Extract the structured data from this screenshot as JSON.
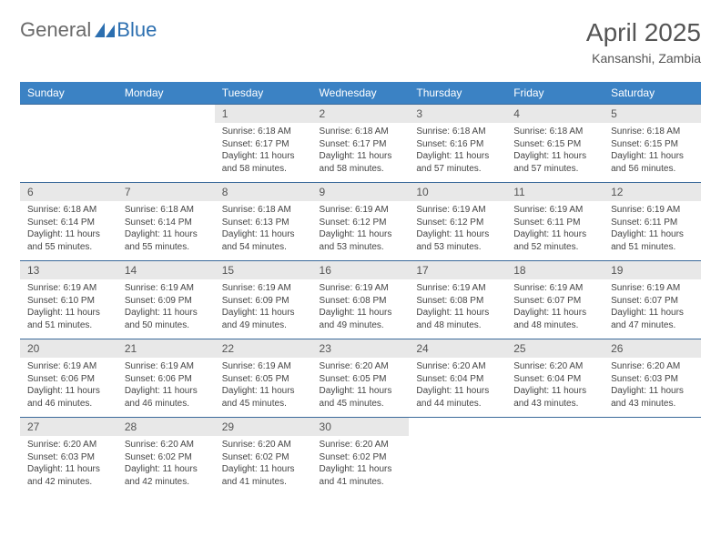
{
  "brand": {
    "part1": "General",
    "part2": "Blue"
  },
  "colors": {
    "header_bg": "#3b82c4",
    "header_text": "#ffffff",
    "row_border": "#3b6a9a",
    "daynum_bg": "#e8e8e8",
    "text": "#444444",
    "title": "#555555",
    "logo_gray": "#6a6a6a",
    "logo_accent": "#2c6fb0"
  },
  "title": "April 2025",
  "location": "Kansanshi, Zambia",
  "weekdays": [
    "Sunday",
    "Monday",
    "Tuesday",
    "Wednesday",
    "Thursday",
    "Friday",
    "Saturday"
  ],
  "weeks": [
    [
      {
        "n": "",
        "sr": "",
        "ss": "",
        "dl": ""
      },
      {
        "n": "",
        "sr": "",
        "ss": "",
        "dl": ""
      },
      {
        "n": "1",
        "sr": "Sunrise: 6:18 AM",
        "ss": "Sunset: 6:17 PM",
        "dl": "Daylight: 11 hours and 58 minutes."
      },
      {
        "n": "2",
        "sr": "Sunrise: 6:18 AM",
        "ss": "Sunset: 6:17 PM",
        "dl": "Daylight: 11 hours and 58 minutes."
      },
      {
        "n": "3",
        "sr": "Sunrise: 6:18 AM",
        "ss": "Sunset: 6:16 PM",
        "dl": "Daylight: 11 hours and 57 minutes."
      },
      {
        "n": "4",
        "sr": "Sunrise: 6:18 AM",
        "ss": "Sunset: 6:15 PM",
        "dl": "Daylight: 11 hours and 57 minutes."
      },
      {
        "n": "5",
        "sr": "Sunrise: 6:18 AM",
        "ss": "Sunset: 6:15 PM",
        "dl": "Daylight: 11 hours and 56 minutes."
      }
    ],
    [
      {
        "n": "6",
        "sr": "Sunrise: 6:18 AM",
        "ss": "Sunset: 6:14 PM",
        "dl": "Daylight: 11 hours and 55 minutes."
      },
      {
        "n": "7",
        "sr": "Sunrise: 6:18 AM",
        "ss": "Sunset: 6:14 PM",
        "dl": "Daylight: 11 hours and 55 minutes."
      },
      {
        "n": "8",
        "sr": "Sunrise: 6:18 AM",
        "ss": "Sunset: 6:13 PM",
        "dl": "Daylight: 11 hours and 54 minutes."
      },
      {
        "n": "9",
        "sr": "Sunrise: 6:19 AM",
        "ss": "Sunset: 6:12 PM",
        "dl": "Daylight: 11 hours and 53 minutes."
      },
      {
        "n": "10",
        "sr": "Sunrise: 6:19 AM",
        "ss": "Sunset: 6:12 PM",
        "dl": "Daylight: 11 hours and 53 minutes."
      },
      {
        "n": "11",
        "sr": "Sunrise: 6:19 AM",
        "ss": "Sunset: 6:11 PM",
        "dl": "Daylight: 11 hours and 52 minutes."
      },
      {
        "n": "12",
        "sr": "Sunrise: 6:19 AM",
        "ss": "Sunset: 6:11 PM",
        "dl": "Daylight: 11 hours and 51 minutes."
      }
    ],
    [
      {
        "n": "13",
        "sr": "Sunrise: 6:19 AM",
        "ss": "Sunset: 6:10 PM",
        "dl": "Daylight: 11 hours and 51 minutes."
      },
      {
        "n": "14",
        "sr": "Sunrise: 6:19 AM",
        "ss": "Sunset: 6:09 PM",
        "dl": "Daylight: 11 hours and 50 minutes."
      },
      {
        "n": "15",
        "sr": "Sunrise: 6:19 AM",
        "ss": "Sunset: 6:09 PM",
        "dl": "Daylight: 11 hours and 49 minutes."
      },
      {
        "n": "16",
        "sr": "Sunrise: 6:19 AM",
        "ss": "Sunset: 6:08 PM",
        "dl": "Daylight: 11 hours and 49 minutes."
      },
      {
        "n": "17",
        "sr": "Sunrise: 6:19 AM",
        "ss": "Sunset: 6:08 PM",
        "dl": "Daylight: 11 hours and 48 minutes."
      },
      {
        "n": "18",
        "sr": "Sunrise: 6:19 AM",
        "ss": "Sunset: 6:07 PM",
        "dl": "Daylight: 11 hours and 48 minutes."
      },
      {
        "n": "19",
        "sr": "Sunrise: 6:19 AM",
        "ss": "Sunset: 6:07 PM",
        "dl": "Daylight: 11 hours and 47 minutes."
      }
    ],
    [
      {
        "n": "20",
        "sr": "Sunrise: 6:19 AM",
        "ss": "Sunset: 6:06 PM",
        "dl": "Daylight: 11 hours and 46 minutes."
      },
      {
        "n": "21",
        "sr": "Sunrise: 6:19 AM",
        "ss": "Sunset: 6:06 PM",
        "dl": "Daylight: 11 hours and 46 minutes."
      },
      {
        "n": "22",
        "sr": "Sunrise: 6:19 AM",
        "ss": "Sunset: 6:05 PM",
        "dl": "Daylight: 11 hours and 45 minutes."
      },
      {
        "n": "23",
        "sr": "Sunrise: 6:20 AM",
        "ss": "Sunset: 6:05 PM",
        "dl": "Daylight: 11 hours and 45 minutes."
      },
      {
        "n": "24",
        "sr": "Sunrise: 6:20 AM",
        "ss": "Sunset: 6:04 PM",
        "dl": "Daylight: 11 hours and 44 minutes."
      },
      {
        "n": "25",
        "sr": "Sunrise: 6:20 AM",
        "ss": "Sunset: 6:04 PM",
        "dl": "Daylight: 11 hours and 43 minutes."
      },
      {
        "n": "26",
        "sr": "Sunrise: 6:20 AM",
        "ss": "Sunset: 6:03 PM",
        "dl": "Daylight: 11 hours and 43 minutes."
      }
    ],
    [
      {
        "n": "27",
        "sr": "Sunrise: 6:20 AM",
        "ss": "Sunset: 6:03 PM",
        "dl": "Daylight: 11 hours and 42 minutes."
      },
      {
        "n": "28",
        "sr": "Sunrise: 6:20 AM",
        "ss": "Sunset: 6:02 PM",
        "dl": "Daylight: 11 hours and 42 minutes."
      },
      {
        "n": "29",
        "sr": "Sunrise: 6:20 AM",
        "ss": "Sunset: 6:02 PM",
        "dl": "Daylight: 11 hours and 41 minutes."
      },
      {
        "n": "30",
        "sr": "Sunrise: 6:20 AM",
        "ss": "Sunset: 6:02 PM",
        "dl": "Daylight: 11 hours and 41 minutes."
      },
      {
        "n": "",
        "sr": "",
        "ss": "",
        "dl": ""
      },
      {
        "n": "",
        "sr": "",
        "ss": "",
        "dl": ""
      },
      {
        "n": "",
        "sr": "",
        "ss": "",
        "dl": ""
      }
    ]
  ]
}
